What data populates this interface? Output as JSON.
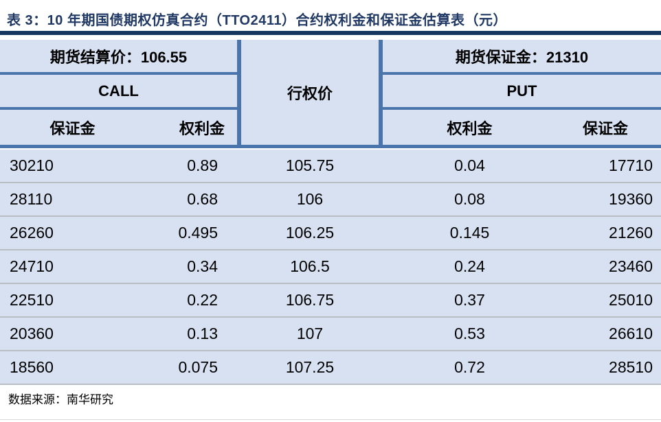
{
  "title": "表 3：10 年期国债期权仿真合约（TTO2411）合约权利金和保证金估算表（元）",
  "colors": {
    "title_navy": "#1f3864",
    "rule_navy": "#17365d",
    "table_border_blue": "#4a74ac",
    "cell_background": "#d7e1f1",
    "row_divider_gray": "#b9bec4"
  },
  "table": {
    "futures_settlement_label": "期货结算价：106.55",
    "futures_margin_label": "期货保证金：21310",
    "call_label": "CALL",
    "put_label": "PUT",
    "strike_label": "行权价",
    "call_margin_header": "保证金",
    "call_premium_header": "权利金",
    "put_premium_header": "权利金",
    "put_margin_header": "保证金",
    "rows": [
      {
        "call_margin": "30210",
        "call_premium": "0.89",
        "strike": "105.75",
        "put_premium": "0.04",
        "put_margin": "17710"
      },
      {
        "call_margin": "28110",
        "call_premium": "0.68",
        "strike": "106",
        "put_premium": "0.08",
        "put_margin": "19360"
      },
      {
        "call_margin": "26260",
        "call_premium": "0.495",
        "strike": "106.25",
        "put_premium": "0.145",
        "put_margin": "21260"
      },
      {
        "call_margin": "24710",
        "call_premium": "0.34",
        "strike": "106.5",
        "put_premium": "0.24",
        "put_margin": "23460"
      },
      {
        "call_margin": "22510",
        "call_premium": "0.22",
        "strike": "106.75",
        "put_premium": "0.37",
        "put_margin": "25010"
      },
      {
        "call_margin": "20360",
        "call_premium": "0.13",
        "strike": "107",
        "put_premium": "0.53",
        "put_margin": "26610"
      },
      {
        "call_margin": "18560",
        "call_premium": "0.075",
        "strike": "107.25",
        "put_premium": "0.72",
        "put_margin": "28510"
      }
    ]
  },
  "footer": {
    "source": "数据来源：南华研究"
  }
}
